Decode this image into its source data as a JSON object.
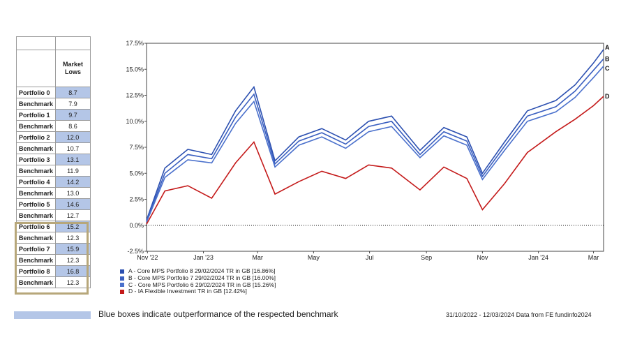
{
  "table": {
    "header": "Market Lows",
    "rows": [
      {
        "label": "Portfolio 0",
        "value": "8.7",
        "outperform": true
      },
      {
        "label": "Benchmark",
        "value": "7.9",
        "outperform": false
      },
      {
        "label": "Portfolio 1",
        "value": "9.7",
        "outperform": true
      },
      {
        "label": "Benchmark",
        "value": "8.6",
        "outperform": false
      },
      {
        "label": "Portfolio 2",
        "value": "12.0",
        "outperform": true
      },
      {
        "label": "Benchmark",
        "value": "10.7",
        "outperform": false
      },
      {
        "label": "Portfolio 3",
        "value": "13.1",
        "outperform": true
      },
      {
        "label": "Benchmark",
        "value": "11.9",
        "outperform": false
      },
      {
        "label": "Portfolio 4",
        "value": "14.2",
        "outperform": true
      },
      {
        "label": "Benchmark",
        "value": "13.0",
        "outperform": false
      },
      {
        "label": "Portfolio 5",
        "value": "14.6",
        "outperform": true
      },
      {
        "label": "Benchmark",
        "value": "12.7",
        "outperform": false
      },
      {
        "label": "Portfolio 6",
        "value": "15.2",
        "outperform": true
      },
      {
        "label": "Benchmark",
        "value": "12.3",
        "outperform": false
      },
      {
        "label": "Portfolio 7",
        "value": "15.9",
        "outperform": true
      },
      {
        "label": "Benchmark",
        "value": "12.3",
        "outperform": false
      },
      {
        "label": "Portfolio 8",
        "value": "16.8",
        "outperform": true
      },
      {
        "label": "Benchmark",
        "value": "12.3",
        "outperform": false
      }
    ],
    "highlight_color": "#b4c6e7",
    "border_color": "#b7a77a"
  },
  "chart_data": {
    "type": "line",
    "title": "",
    "xlabel": "",
    "ylabel": "",
    "ylim": [
      -2.5,
      17.5
    ],
    "y_ticks": [
      "-2.5%",
      "0.0%",
      "2.5%",
      "5.0%",
      "7.5%",
      "10.0%",
      "12.5%",
      "15.0%",
      "17.5%"
    ],
    "x_ticks": [
      "Nov '22",
      "Jan '23",
      "Mar",
      "May",
      "Jul",
      "Sep",
      "Nov",
      "Jan '24",
      "Mar"
    ],
    "x_range": [
      "2022-10-31",
      "2024-03-12"
    ],
    "grid": true,
    "series": [
      {
        "key": "A",
        "name": "A - Core MPS Portfolio 8 29/02/2024 TR in GB [16.86%]",
        "color": "#2b4fb0",
        "points": [
          [
            "2022-10-31",
            0.5
          ],
          [
            "2022-11-20",
            5.5
          ],
          [
            "2022-12-15",
            7.3
          ],
          [
            "2023-01-10",
            6.8
          ],
          [
            "2023-02-05",
            11.0
          ],
          [
            "2023-02-25",
            13.3
          ],
          [
            "2023-03-20",
            6.2
          ],
          [
            "2023-04-15",
            8.5
          ],
          [
            "2023-05-10",
            9.3
          ],
          [
            "2023-06-05",
            8.2
          ],
          [
            "2023-06-30",
            10.0
          ],
          [
            "2023-07-25",
            10.5
          ],
          [
            "2023-08-25",
            7.2
          ],
          [
            "2023-09-20",
            9.4
          ],
          [
            "2023-10-15",
            8.5
          ],
          [
            "2023-11-01",
            5.0
          ],
          [
            "2023-11-25",
            8.0
          ],
          [
            "2023-12-20",
            11.0
          ],
          [
            "2024-01-20",
            12.0
          ],
          [
            "2024-02-10",
            13.5
          ],
          [
            "2024-03-01",
            15.6
          ],
          [
            "2024-03-12",
            16.9
          ]
        ]
      },
      {
        "key": "B",
        "name": "B - Core MPS Portfolio 7 29/02/2024 TR in GB [16.00%]",
        "color": "#3a5fc0",
        "points": [
          [
            "2022-10-31",
            0.4
          ],
          [
            "2022-11-20",
            5.0
          ],
          [
            "2022-12-15",
            6.8
          ],
          [
            "2023-01-10",
            6.4
          ],
          [
            "2023-02-05",
            10.4
          ],
          [
            "2023-02-25",
            12.6
          ],
          [
            "2023-03-20",
            5.9
          ],
          [
            "2023-04-15",
            8.1
          ],
          [
            "2023-05-10",
            8.9
          ],
          [
            "2023-06-05",
            7.8
          ],
          [
            "2023-06-30",
            9.5
          ],
          [
            "2023-07-25",
            10.0
          ],
          [
            "2023-08-25",
            6.8
          ],
          [
            "2023-09-20",
            9.0
          ],
          [
            "2023-10-15",
            8.1
          ],
          [
            "2023-11-01",
            4.7
          ],
          [
            "2023-11-25",
            7.6
          ],
          [
            "2023-12-20",
            10.5
          ],
          [
            "2024-01-20",
            11.4
          ],
          [
            "2024-02-10",
            12.9
          ],
          [
            "2024-03-01",
            14.9
          ],
          [
            "2024-03-12",
            16.0
          ]
        ]
      },
      {
        "key": "C",
        "name": "C - Core MPS Portfolio 6 29/02/2024 TR in GB [15.26%]",
        "color": "#4a70cc",
        "points": [
          [
            "2022-10-31",
            0.3
          ],
          [
            "2022-11-20",
            4.6
          ],
          [
            "2022-12-15",
            6.3
          ],
          [
            "2023-01-10",
            6.0
          ],
          [
            "2023-02-05",
            9.8
          ],
          [
            "2023-02-25",
            11.9
          ],
          [
            "2023-03-20",
            5.6
          ],
          [
            "2023-04-15",
            7.7
          ],
          [
            "2023-05-10",
            8.5
          ],
          [
            "2023-06-05",
            7.4
          ],
          [
            "2023-06-30",
            9.0
          ],
          [
            "2023-07-25",
            9.5
          ],
          [
            "2023-08-25",
            6.5
          ],
          [
            "2023-09-20",
            8.6
          ],
          [
            "2023-10-15",
            7.7
          ],
          [
            "2023-11-01",
            4.4
          ],
          [
            "2023-11-25",
            7.2
          ],
          [
            "2023-12-20",
            10.0
          ],
          [
            "2024-01-20",
            10.9
          ],
          [
            "2024-02-10",
            12.3
          ],
          [
            "2024-03-01",
            14.2
          ],
          [
            "2024-03-12",
            15.3
          ]
        ]
      },
      {
        "key": "D",
        "name": "D - IA Flexible Investment TR in GB [12.42%]",
        "color": "#c41a1a",
        "points": [
          [
            "2022-10-31",
            0.1
          ],
          [
            "2022-11-20",
            3.3
          ],
          [
            "2022-12-15",
            3.8
          ],
          [
            "2023-01-10",
            2.6
          ],
          [
            "2023-02-05",
            6.0
          ],
          [
            "2023-02-25",
            8.0
          ],
          [
            "2023-03-20",
            3.0
          ],
          [
            "2023-04-15",
            4.2
          ],
          [
            "2023-05-10",
            5.2
          ],
          [
            "2023-06-05",
            4.5
          ],
          [
            "2023-06-30",
            5.8
          ],
          [
            "2023-07-25",
            5.5
          ],
          [
            "2023-08-25",
            3.4
          ],
          [
            "2023-09-20",
            5.6
          ],
          [
            "2023-10-15",
            4.5
          ],
          [
            "2023-11-01",
            1.5
          ],
          [
            "2023-11-25",
            4.0
          ],
          [
            "2023-12-20",
            7.0
          ],
          [
            "2024-01-20",
            9.0
          ],
          [
            "2024-02-10",
            10.2
          ],
          [
            "2024-03-01",
            11.5
          ],
          [
            "2024-03-12",
            12.4
          ]
        ]
      }
    ]
  },
  "note": {
    "text": "Blue boxes indicate outperformance of the respected benchmark",
    "swatch_color": "#b4c6e7"
  },
  "source": {
    "text": "31/10/2022 - 12/03/2024 Data from FE fundinfo2024"
  }
}
